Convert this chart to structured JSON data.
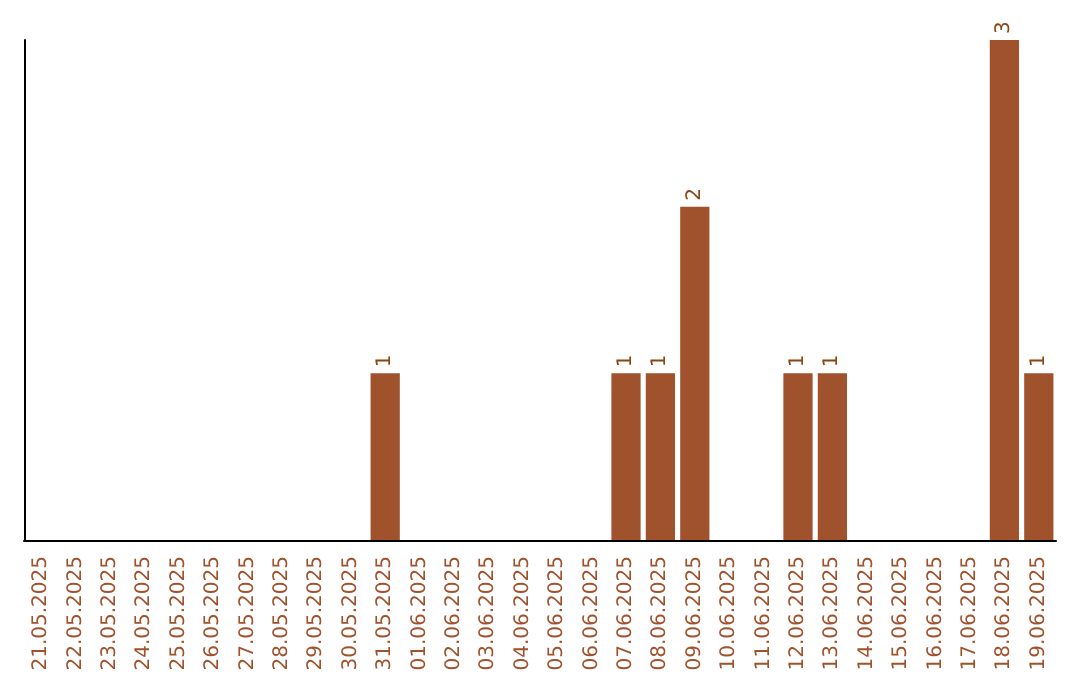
{
  "chart_data": {
    "type": "bar",
    "categories": [
      "21.05.2025",
      "22.05.2025",
      "23.05.2025",
      "24.05.2025",
      "25.05.2025",
      "26.05.2025",
      "27.05.2025",
      "28.05.2025",
      "29.05.2025",
      "30.05.2025",
      "31.05.2025",
      "01.06.2025",
      "02.06.2025",
      "03.06.2025",
      "04.06.2025",
      "05.06.2025",
      "06.06.2025",
      "07.06.2025",
      "08.06.2025",
      "09.06.2025",
      "10.06.2025",
      "11.06.2025",
      "12.06.2025",
      "13.06.2025",
      "14.06.2025",
      "15.06.2025",
      "16.06.2025",
      "17.06.2025",
      "18.06.2025",
      "19.06.2025"
    ],
    "values": [
      0,
      0,
      0,
      0,
      0,
      0,
      0,
      0,
      0,
      0,
      1,
      0,
      0,
      0,
      0,
      0,
      0,
      1,
      1,
      2,
      0,
      0,
      1,
      1,
      0,
      0,
      0,
      0,
      3,
      1
    ],
    "value_labels": [
      null,
      null,
      null,
      null,
      null,
      null,
      null,
      null,
      null,
      null,
      "1",
      null,
      null,
      null,
      null,
      null,
      null,
      "1",
      "1",
      "2",
      null,
      null,
      "1",
      "1",
      null,
      null,
      null,
      null,
      "3",
      "1"
    ],
    "color": "#a0522d",
    "tick_labels": "x",
    "grid": false
  }
}
